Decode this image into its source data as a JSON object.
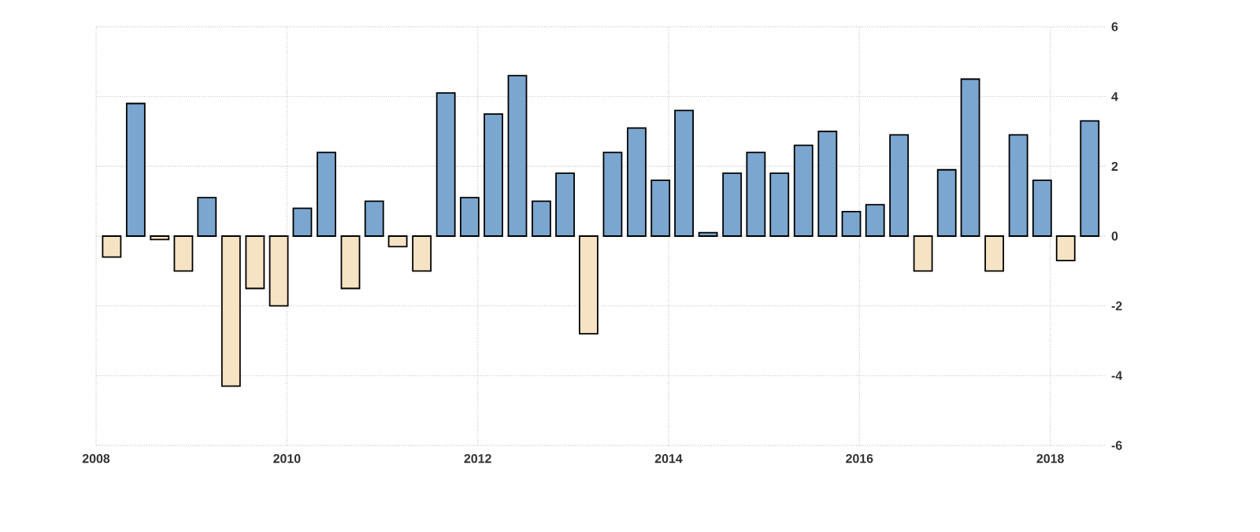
{
  "chart_data": {
    "type": "bar",
    "x": [
      "2008-03",
      "2008-06",
      "2008-09",
      "2008-12",
      "2009-03",
      "2009-06",
      "2009-09",
      "2009-12",
      "2010-03",
      "2010-06",
      "2010-09",
      "2010-12",
      "2011-03",
      "2011-06",
      "2011-09",
      "2011-12",
      "2012-03",
      "2012-06",
      "2012-09",
      "2012-12",
      "2013-03",
      "2013-06",
      "2013-09",
      "2013-12",
      "2014-03",
      "2014-06",
      "2014-09",
      "2014-12",
      "2015-03",
      "2015-06",
      "2015-09",
      "2015-12",
      "2016-03",
      "2016-06",
      "2016-09",
      "2016-12",
      "2017-03",
      "2017-06",
      "2017-09",
      "2017-12",
      "2018-03",
      "2018-06"
    ],
    "values": [
      -0.6,
      3.8,
      -0.1,
      -1.0,
      1.1,
      -4.3,
      -1.5,
      -2.0,
      0.8,
      2.4,
      -1.5,
      1.0,
      -0.3,
      -1.0,
      4.1,
      1.1,
      3.5,
      4.6,
      1.0,
      1.8,
      -2.8,
      2.4,
      3.1,
      1.6,
      3.6,
      0.1,
      1.8,
      2.4,
      1.8,
      2.6,
      3.0,
      0.7,
      0.9,
      2.9,
      -1.0,
      1.9,
      4.5,
      -1.0,
      2.9,
      1.6,
      -0.7,
      3.3
    ],
    "colors": [
      "#f6e3c4",
      "#7aa6cf",
      "#f6e3c4",
      "#f6e3c4",
      "#7aa6cf",
      "#f6e3c4",
      "#f6e3c4",
      "#f6e3c4",
      "#7aa6cf",
      "#7aa6cf",
      "#f6e3c4",
      "#7aa6cf",
      "#f6e3c4",
      "#f6e3c4",
      "#7aa6cf",
      "#7aa6cf",
      "#7aa6cf",
      "#7aa6cf",
      "#7aa6cf",
      "#7aa6cf",
      "#f6e3c4",
      "#7aa6cf",
      "#7aa6cf",
      "#7aa6cf",
      "#7aa6cf",
      "#7aa6cf",
      "#7aa6cf",
      "#7aa6cf",
      "#7aa6cf",
      "#7aa6cf",
      "#7aa6cf",
      "#7aa6cf",
      "#7aa6cf",
      "#7aa6cf",
      "#f6e3c4",
      "#7aa6cf",
      "#7aa6cf",
      "#f6e3c4",
      "#7aa6cf",
      "#7aa6cf",
      "#f6e3c4",
      "#7aa6cf"
    ],
    "xlim": [
      "2008-01-01",
      "2018-08-01"
    ],
    "xticks": [
      "2008",
      "2010",
      "2012",
      "2014",
      "2016",
      "2018"
    ],
    "ylim": [
      -6,
      6
    ],
    "yticks": [
      -6,
      -4,
      -2,
      0,
      2,
      4,
      6
    ],
    "grid": true
  }
}
